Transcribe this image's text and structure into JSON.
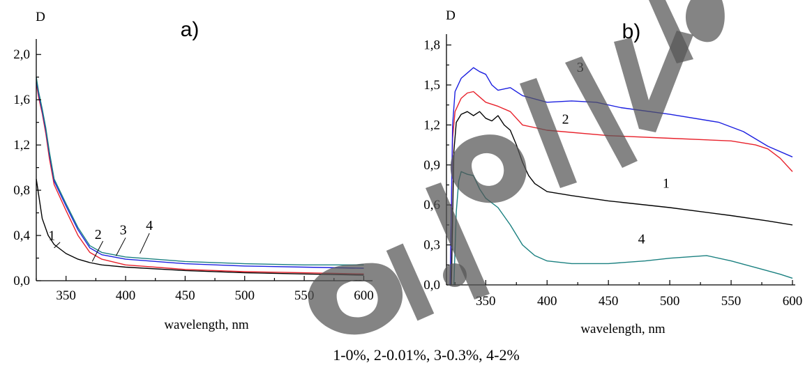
{
  "chart_data": [
    {
      "panel": "a)",
      "type": "line",
      "ylabel": "D",
      "xlabel": "wavelength, nm",
      "xlim": [
        325,
        605
      ],
      "ylim": [
        0,
        2.1
      ],
      "xticks": [
        350,
        400,
        450,
        500,
        550,
        600
      ],
      "xtick_labels": [
        "350",
        "400",
        "450",
        "500",
        "550",
        "600"
      ],
      "yticks": [
        0,
        0.4,
        0.8,
        1.2,
        1.6,
        2.0
      ],
      "ytick_labels": [
        "0,0",
        "0,4",
        "0,8",
        "1,2",
        "1,6",
        "2,0"
      ],
      "series": [
        {
          "label": "1",
          "color": "#000000",
          "x": [
            325,
            330,
            335,
            340,
            350,
            360,
            370,
            380,
            400,
            450,
            500,
            550,
            600
          ],
          "y": [
            0.9,
            0.55,
            0.4,
            0.32,
            0.24,
            0.19,
            0.16,
            0.14,
            0.12,
            0.09,
            0.07,
            0.06,
            0.05
          ]
        },
        {
          "label": "2",
          "color": "#e8212b",
          "x": [
            325,
            327,
            330,
            333,
            336,
            340,
            350,
            360,
            370,
            380,
            400,
            450,
            500,
            550,
            600
          ],
          "y": [
            1.75,
            1.62,
            1.48,
            1.3,
            1.08,
            0.85,
            0.62,
            0.4,
            0.25,
            0.19,
            0.14,
            0.1,
            0.08,
            0.07,
            0.06
          ]
        },
        {
          "label": "3",
          "color": "#1b1fe0",
          "x": [
            325,
            327,
            330,
            333,
            336,
            340,
            350,
            360,
            370,
            380,
            400,
            450,
            500,
            550,
            600
          ],
          "y": [
            1.78,
            1.65,
            1.5,
            1.33,
            1.12,
            0.88,
            0.66,
            0.45,
            0.29,
            0.23,
            0.19,
            0.15,
            0.13,
            0.12,
            0.11
          ]
        },
        {
          "label": "4",
          "color": "#1a8080",
          "x": [
            325,
            327,
            330,
            333,
            336,
            340,
            350,
            360,
            370,
            380,
            400,
            450,
            500,
            550,
            600
          ],
          "y": [
            1.8,
            1.67,
            1.52,
            1.35,
            1.14,
            0.9,
            0.68,
            0.47,
            0.31,
            0.25,
            0.21,
            0.17,
            0.15,
            0.14,
            0.14
          ]
        }
      ],
      "curve_labels": [
        {
          "text": "1",
          "x": 338,
          "y": 0.36
        },
        {
          "text": "2",
          "x": 377,
          "y": 0.37
        },
        {
          "text": "3",
          "x": 398,
          "y": 0.41
        },
        {
          "text": "4",
          "x": 420,
          "y": 0.45
        }
      ]
    },
    {
      "panel": "b)",
      "type": "line",
      "ylabel": "D",
      "xlabel": "wavelength, nm",
      "xlim": [
        318,
        600
      ],
      "ylim": [
        0,
        1.85
      ],
      "xticks": [
        350,
        400,
        450,
        500,
        550,
        600
      ],
      "xtick_labels": [
        "350",
        "400",
        "450",
        "500",
        "550",
        "600"
      ],
      "yticks": [
        0,
        0.3,
        0.6,
        0.9,
        1.2,
        1.5,
        1.8
      ],
      "ytick_labels": [
        "0,0",
        "0,3",
        "0,6",
        "0,9",
        "1,2",
        "1,5",
        "1,8"
      ],
      "series": [
        {
          "label": "1",
          "color": "#000000",
          "x": [
            322,
            324,
            326,
            330,
            335,
            340,
            345,
            350,
            355,
            360,
            365,
            370,
            375,
            380,
            385,
            390,
            400,
            420,
            450,
            500,
            550,
            580,
            600
          ],
          "y": [
            0.0,
            1.0,
            1.22,
            1.28,
            1.3,
            1.27,
            1.3,
            1.25,
            1.23,
            1.27,
            1.2,
            1.16,
            1.05,
            0.92,
            0.82,
            0.76,
            0.7,
            0.67,
            0.63,
            0.58,
            0.52,
            0.48,
            0.45
          ]
        },
        {
          "label": "2",
          "color": "#e8212b",
          "x": [
            321,
            323,
            325,
            330,
            335,
            340,
            345,
            350,
            360,
            370,
            380,
            400,
            450,
            500,
            550,
            570,
            580,
            590,
            600
          ],
          "y": [
            0.0,
            1.1,
            1.3,
            1.4,
            1.44,
            1.45,
            1.41,
            1.37,
            1.34,
            1.3,
            1.2,
            1.16,
            1.12,
            1.1,
            1.08,
            1.05,
            1.02,
            0.95,
            0.85
          ]
        },
        {
          "label": "3",
          "color": "#1b1fe0",
          "x": [
            321,
            323,
            325,
            330,
            335,
            340,
            345,
            350,
            355,
            360,
            370,
            380,
            400,
            420,
            440,
            460,
            500,
            540,
            560,
            580,
            600
          ],
          "y": [
            0.0,
            1.2,
            1.45,
            1.55,
            1.59,
            1.63,
            1.6,
            1.58,
            1.5,
            1.46,
            1.48,
            1.42,
            1.37,
            1.38,
            1.37,
            1.33,
            1.28,
            1.22,
            1.15,
            1.04,
            0.96
          ]
        },
        {
          "label": "4",
          "color": "#1a8080",
          "x": [
            324,
            326,
            328,
            330,
            335,
            340,
            345,
            350,
            360,
            370,
            380,
            390,
            400,
            420,
            450,
            480,
            500,
            530,
            550,
            570,
            590,
            600
          ],
          "y": [
            0.0,
            0.55,
            0.78,
            0.85,
            0.83,
            0.82,
            0.72,
            0.65,
            0.58,
            0.45,
            0.3,
            0.22,
            0.18,
            0.16,
            0.16,
            0.18,
            0.2,
            0.22,
            0.18,
            0.13,
            0.08,
            0.05
          ]
        }
      ],
      "curve_labels": [
        {
          "text": "3",
          "x": 427,
          "y": 1.6
        },
        {
          "text": "2",
          "x": 415,
          "y": 1.21
        },
        {
          "text": "1",
          "x": 497,
          "y": 0.73
        },
        {
          "text": "4",
          "x": 477,
          "y": 0.31
        }
      ]
    }
  ],
  "caption": "1-0%, 2-0.01%, 3-0.3%, 4-2%",
  "watermark": {
    "present": true,
    "color": "#555555"
  }
}
